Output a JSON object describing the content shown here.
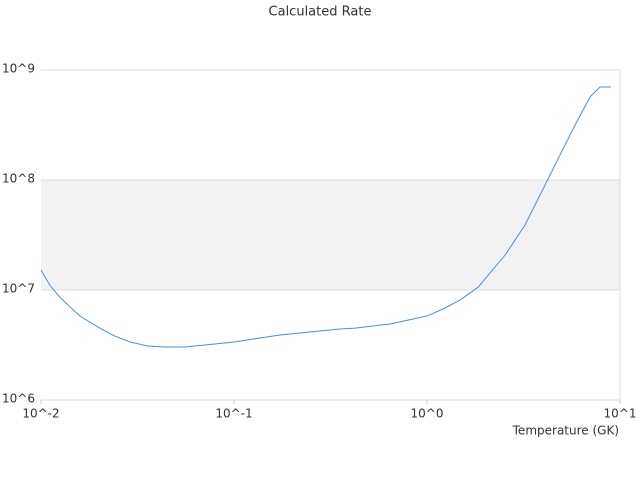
{
  "chart_data": {
    "type": "line",
    "title": "Calculated Rate",
    "x_label": "Temperature (GK)",
    "x_scale": "log",
    "y_scale": "log",
    "grid": true,
    "alternate_band_color": "#f2f2f2",
    "xlim": [
      0.01,
      10
    ],
    "ylim": [
      1000000,
      1000000000
    ],
    "xticks": [
      {
        "value": 0.01,
        "label": "10^-2"
      },
      {
        "value": 0.1,
        "label": "10^-1"
      },
      {
        "value": 1,
        "label": "10^0"
      },
      {
        "value": 10,
        "label": "10^1"
      }
    ],
    "yticks": [
      {
        "value": 1000000,
        "label": "10^6"
      },
      {
        "value": 10000000,
        "label": "10^7"
      },
      {
        "value": 100000000,
        "label": "10^8"
      },
      {
        "value": 1000000000,
        "label": "10^9"
      }
    ],
    "series": [
      {
        "color": "#4a90d9",
        "x": [
          0.01,
          0.0111,
          0.0125,
          0.0159,
          0.0202,
          0.0242,
          0.0289,
          0.0358,
          0.0439,
          0.0557,
          0.0708,
          0.1,
          0.1365,
          0.173,
          0.248,
          0.354,
          0.424,
          0.643,
          1,
          1.24,
          1.48,
          1.84,
          2.54,
          3.22,
          4.09,
          4.89,
          5.85,
          7.0,
          7.88,
          8.97
        ],
        "values": [
          15200000,
          11100000,
          8600000,
          5800000,
          4500000,
          3800000,
          3370000,
          3100000,
          3030000,
          3030000,
          3160000,
          3370000,
          3660000,
          3900000,
          4150000,
          4420000,
          4500000,
          4910000,
          5800000,
          6860000,
          8100000,
          10600000,
          20800000,
          39000000,
          90000000,
          169000000,
          316000000,
          570000000,
          700000000,
          700000000
        ]
      }
    ]
  }
}
